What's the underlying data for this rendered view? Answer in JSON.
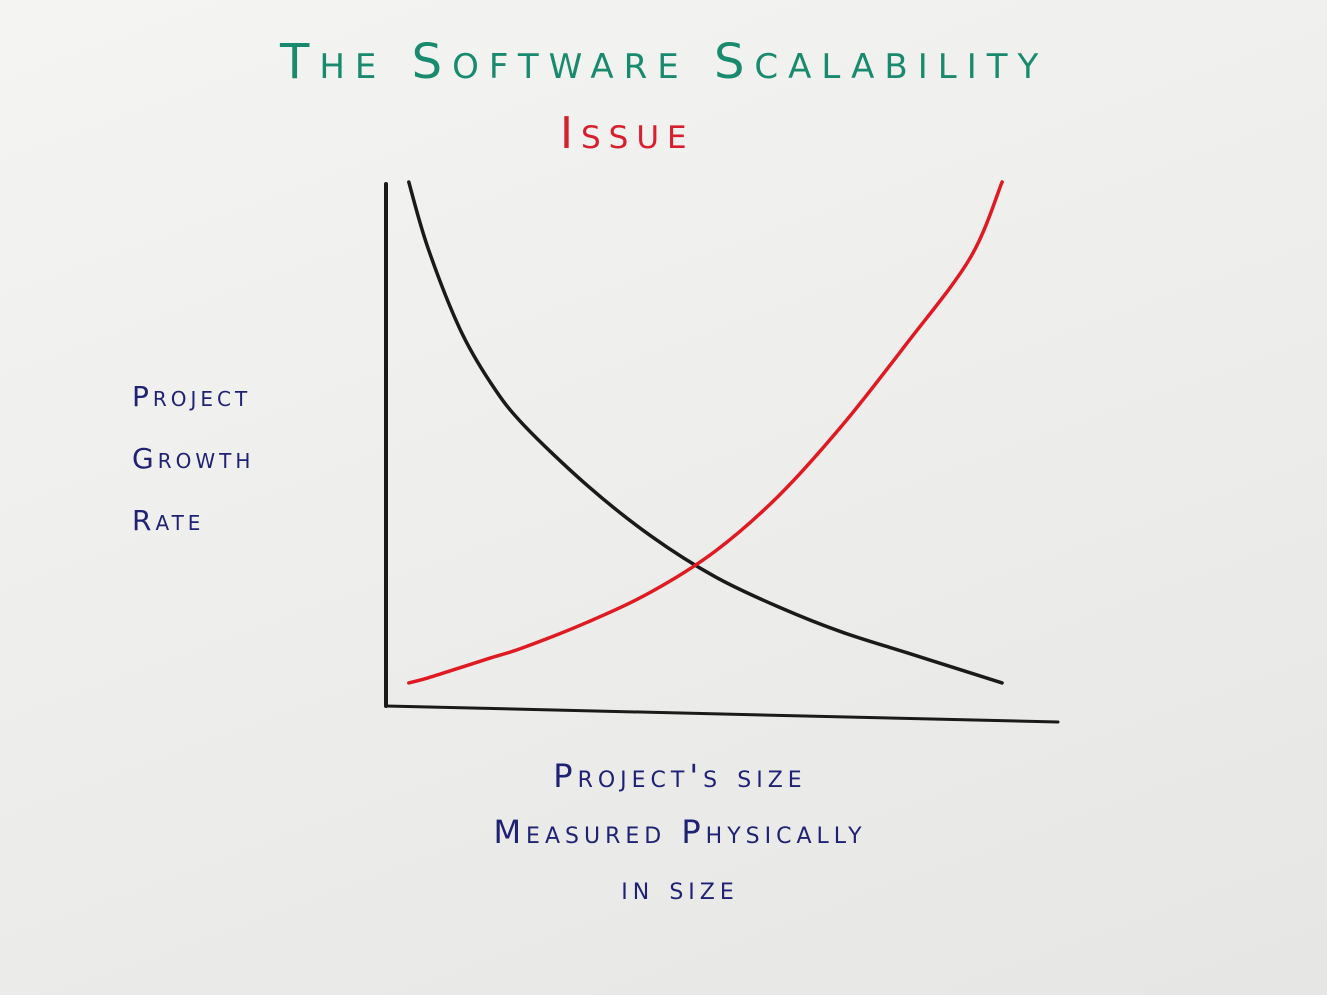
{
  "chart_data": {
    "type": "line",
    "title": "The Software Scalability",
    "subtitle": "Issue",
    "ylabel_lines": [
      "Project",
      "Growth",
      "Rate"
    ],
    "xlabel_lines": [
      "Project's size",
      "Measured Physically",
      "in size"
    ],
    "grid": false,
    "legend": "none",
    "x": [
      0.02,
      0.05,
      0.1,
      0.15,
      0.2,
      0.3,
      0.4,
      0.5,
      0.6,
      0.7,
      0.8,
      0.9,
      0.95
    ],
    "series": [
      {
        "color": "#1a1a1a",
        "values": [
          1.0,
          0.87,
          0.71,
          0.6,
          0.52,
          0.4,
          0.3,
          0.22,
          0.16,
          0.11,
          0.07,
          0.03,
          0.01
        ]
      },
      {
        "color": "#e01a22",
        "values": [
          0.01,
          0.02,
          0.04,
          0.06,
          0.08,
          0.13,
          0.19,
          0.27,
          0.38,
          0.52,
          0.68,
          0.85,
          1.0
        ]
      }
    ],
    "colors": {
      "title": "#1a8a6e",
      "subtitle": "#d81f2e",
      "labels": "#1f2175",
      "axis": "#1a1a1a"
    }
  }
}
